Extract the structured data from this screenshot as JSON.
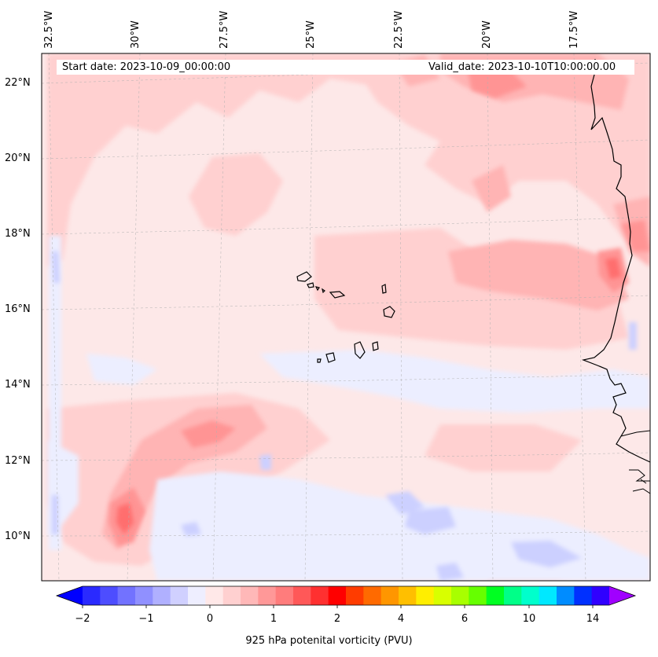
{
  "header": {
    "start_date": "Start date: 2023-10-09_00:00:00",
    "valid_date": "Valid_date: 2023-10-10T10:00:00.00"
  },
  "axes": {
    "lon_labels": [
      "32.5°W",
      "30°W",
      "27.5°W",
      "25°W",
      "22.5°W",
      "20°W",
      "17.5°W"
    ],
    "lat_labels": [
      "22°N",
      "20°N",
      "18°N",
      "16°N",
      "14°N",
      "12°N",
      "10°N"
    ],
    "lon_range": [
      -32.7,
      -15.8
    ],
    "lat_range": [
      8.9,
      22.8
    ],
    "grid": true
  },
  "colorbar": {
    "label": "925 hPa potenital vorticity (PVU)",
    "ticks": [
      "−2",
      "−1",
      "0",
      "1",
      "2",
      "4",
      "6",
      "10",
      "14"
    ],
    "colors": [
      "#0000ff",
      "#2a2aff",
      "#4d4dff",
      "#7272ff",
      "#9090ff",
      "#b0b0ff",
      "#d0d0ff",
      "#eeeeff",
      "#ffe8e8",
      "#ffd0d0",
      "#ffb8b8",
      "#ff9898",
      "#ff7c7c",
      "#ff5858",
      "#ff3030",
      "#ff0000",
      "#ff3c00",
      "#ff6a00",
      "#ff9600",
      "#ffbf00",
      "#ffee00",
      "#d8ff00",
      "#a8ff00",
      "#66ff00",
      "#00ff22",
      "#00ff88",
      "#00ffcc",
      "#00e8ff",
      "#008cff",
      "#0030ff",
      "#3000ff",
      "#a000ff"
    ],
    "extend": "both"
  },
  "map": {
    "projection": "Lambert conformal",
    "region": "Eastern tropical Atlantic, Cape Verde Islands and West African coast",
    "colors": {
      "very_light_pink": "#fde8e8",
      "light_pink": "#ffd0d0",
      "pink": "#ffb4b4",
      "medium_pink": "#ff9494",
      "red_pink": "#ff6e6e",
      "light_blue": "#eceeff",
      "blue": "#ccd0ff",
      "coast": "#000000"
    }
  }
}
